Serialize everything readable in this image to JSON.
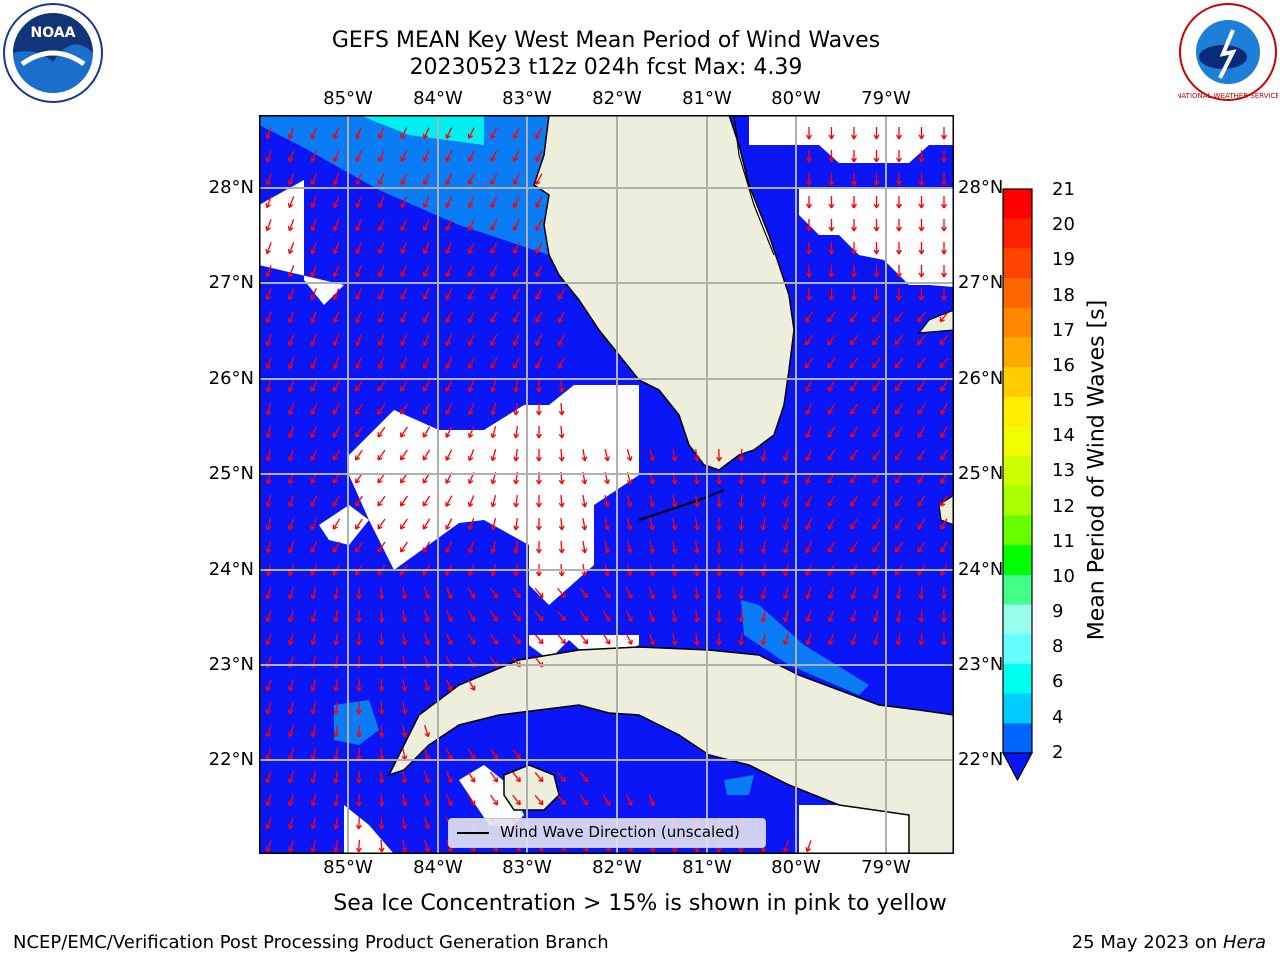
{
  "header": {
    "title_line1": "GEFS MEAN Key West Mean Period of Wind Waves",
    "title_line2": "20230523 t12z 024h fcst   Max: 4.39"
  },
  "logos": {
    "left": {
      "name": "noaa-logo",
      "text": "NOAA"
    },
    "right": {
      "name": "national-weather-service-logo",
      "text": "NATIONAL WEATHER SERVICE"
    }
  },
  "map": {
    "lon_labels": [
      "85°W",
      "84°W",
      "83°W",
      "82°W",
      "81°W",
      "80°W",
      "79°W"
    ],
    "lat_labels": [
      "28°N",
      "27°N",
      "26°N",
      "25°N",
      "24°N",
      "23°N",
      "22°N"
    ],
    "ocean_color": "#0a16f5",
    "land_color": "#eeeedd",
    "arrow_color": "#ff0000",
    "legend_label": "Wind Wave Direction (unscaled)"
  },
  "colorbar": {
    "label": "Mean Period of Wind Waves [s]",
    "ticks": [
      "21",
      "20",
      "19",
      "18",
      "17",
      "16",
      "15",
      "14",
      "13",
      "12",
      "11",
      "10",
      "9",
      "8",
      "6",
      "4",
      "2"
    ],
    "colors": [
      "#ff0000",
      "#ff2200",
      "#ff4400",
      "#ff6600",
      "#ff8800",
      "#ffaa00",
      "#ffcc00",
      "#ffee00",
      "#eeff00",
      "#ccff00",
      "#aaff00",
      "#66ff00",
      "#00ff00",
      "#44ff88",
      "#99ffee",
      "#66ffff",
      "#00ffee",
      "#00ccff",
      "#0066ff"
    ]
  },
  "notes": {
    "sea_ice": "Sea Ice Concentration > 15% is shown in pink to yellow"
  },
  "footer": {
    "left": "NCEP/EMC/Verification Post Processing Product Generation Branch",
    "right_prefix": "25 May 2023 on ",
    "right_machine": "Hera"
  }
}
